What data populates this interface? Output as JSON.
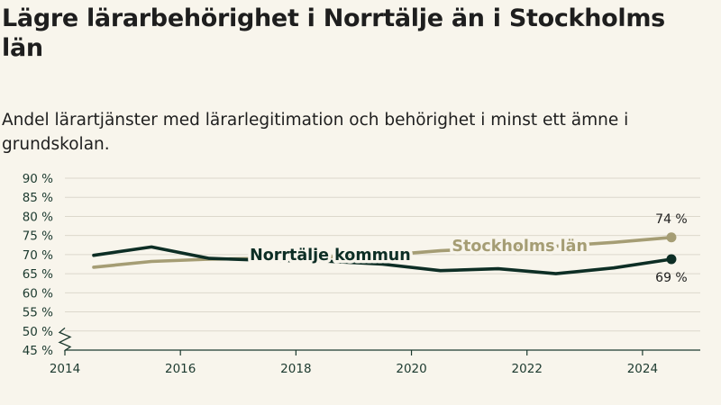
{
  "title": "Lägre lärarbehörighet i Norrtälje än i Stockholms län",
  "subtitle": "Andel lärartjänster med lärarlegitimation och behörighet i minst ett ämne i grundskolan.",
  "chart_data": {
    "type": "line",
    "title": "Lägre lärarbehörighet i Norrtälje än i Stockholms län",
    "subtitle": "Andel lärartjänster med lärarlegitimation och behörighet i minst ett ämne i grundskolan.",
    "x_ticks": [
      "2014",
      "2016",
      "2018",
      "2020",
      "2022",
      "2024"
    ],
    "x_tick_values": [
      2014,
      2016,
      2018,
      2020,
      2022,
      2024
    ],
    "xlim": [
      2014,
      2025
    ],
    "y_ticks": [
      "45 %",
      "50 %",
      "55 %",
      "60 %",
      "65 %",
      "70 %",
      "75 %",
      "80 %",
      "85 %",
      "90 %"
    ],
    "y_tick_values": [
      45,
      50,
      55,
      60,
      65,
      70,
      75,
      80,
      85,
      90
    ],
    "ylim": [
      45,
      90
    ],
    "axis_break": "y",
    "grid": true,
    "legend": "inline labels",
    "x": [
      2014.5,
      2015.5,
      2016.5,
      2017.5,
      2018.5,
      2019.5,
      2020.5,
      2021.5,
      2022.5,
      2023.5,
      2024.5
    ],
    "series": [
      {
        "name": "Stockholms län",
        "color": "#a59d74",
        "values": [
          66.7,
          68.2,
          68.8,
          69.0,
          69.4,
          69.8,
          71.0,
          71.8,
          72.2,
          73.2,
          74.5
        ],
        "end_label": "74 %",
        "label_at": 2020.7,
        "label_y": 72.3
      },
      {
        "name": "Norrtälje kommun",
        "color": "#0d2e25",
        "values": [
          69.8,
          72.0,
          69.0,
          68.5,
          68.3,
          67.5,
          65.8,
          66.3,
          65.0,
          66.5,
          68.8
        ],
        "end_label": "69 %",
        "label_at": 2017.2,
        "label_y": 70.0
      }
    ]
  }
}
